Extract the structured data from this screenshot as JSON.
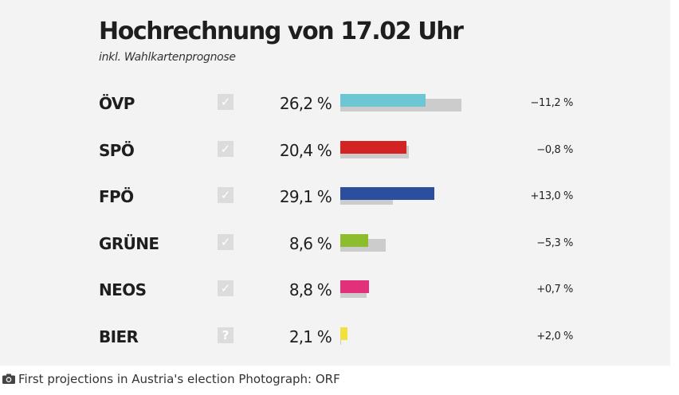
{
  "chart_data": {
    "type": "bar",
    "title": "Hochrechnung von 17.02 Uhr",
    "subtitle": "inkl. Wahlkartenprognose",
    "categories": [
      "ÖVP",
      "SPÖ",
      "FPÖ",
      "GRÜNE",
      "NEOS",
      "BIER"
    ],
    "series": [
      {
        "values": [
          26.2,
          20.4,
          29.1,
          8.6,
          8.8,
          2.1
        ]
      },
      {
        "values": [
          37.4,
          21.2,
          16.1,
          13.9,
          8.1,
          0.1
        ]
      }
    ],
    "value_labels": [
      "26,2 %",
      "20,4 %",
      "29,1 %",
      "8,6 %",
      "8,8 %",
      "2,1 %"
    ],
    "change_labels": [
      "−11,2 %",
      "−0,8 %",
      "+13,0 %",
      "−5,3 %",
      "+0,7 %",
      "+2,0 %"
    ],
    "status_icons": [
      "check-icon",
      "check-icon",
      "check-icon",
      "check-icon",
      "check-icon",
      "question-icon"
    ],
    "colors": [
      "#6cc6d4",
      "#d42323",
      "#2b4f9c",
      "#8cbd2f",
      "#e3307a",
      "#f2e03c"
    ],
    "previous_color": "#cccccc",
    "xlim": [
      0,
      50
    ],
    "grid": false
  },
  "caption": {
    "icon": "camera-icon",
    "text": "First projections in Austria's election Photograph: ORF"
  }
}
